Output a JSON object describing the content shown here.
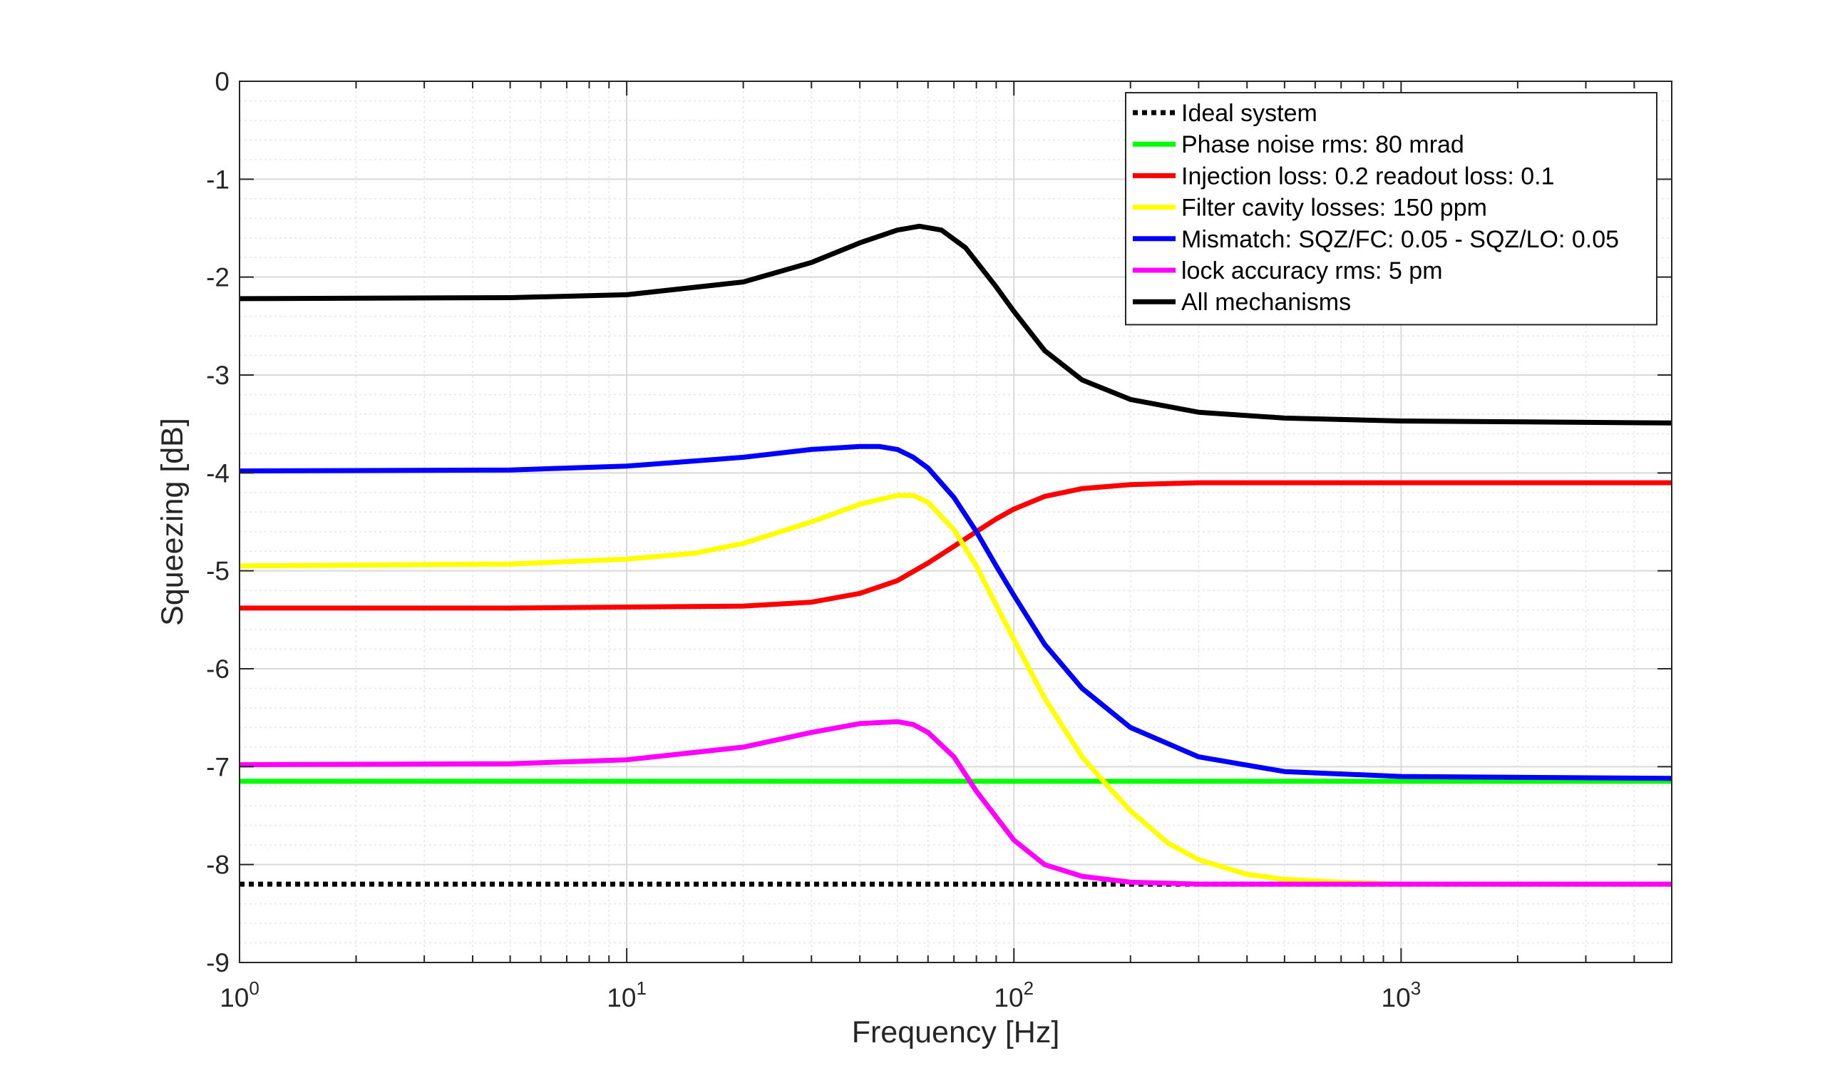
{
  "chart_data": {
    "type": "line",
    "xlabel": "Frequency [Hz]",
    "ylabel": "Squeezing [dB]",
    "xscale": "log",
    "xlim": [
      1,
      5000
    ],
    "ylim": [
      -9,
      0
    ],
    "grid": true,
    "minor_grid": true,
    "legend_position": "top-right",
    "x_ticks": [
      {
        "value": 1,
        "base": "10",
        "exp": "0"
      },
      {
        "value": 10,
        "base": "10",
        "exp": "1"
      },
      {
        "value": 100,
        "base": "10",
        "exp": "2"
      },
      {
        "value": 1000,
        "base": "10",
        "exp": "3"
      }
    ],
    "y_ticks": [
      {
        "value": 0,
        "label": "0"
      },
      {
        "value": -1,
        "label": "-1"
      },
      {
        "value": -2,
        "label": "-2"
      },
      {
        "value": -3,
        "label": "-3"
      },
      {
        "value": -4,
        "label": "-4"
      },
      {
        "value": -5,
        "label": "-5"
      },
      {
        "value": -6,
        "label": "-6"
      },
      {
        "value": -7,
        "label": "-7"
      },
      {
        "value": -8,
        "label": "-8"
      },
      {
        "value": -9,
        "label": "-9"
      }
    ],
    "series": [
      {
        "name": "Ideal system",
        "color": "#000000",
        "dash": "dotted",
        "x": [
          1,
          5000
        ],
        "y": [
          -8.2,
          -8.2
        ]
      },
      {
        "name": "Phase noise rms: 80 mrad",
        "color": "#00ff00",
        "dash": "solid",
        "x": [
          1,
          5000
        ],
        "y": [
          -7.15,
          -7.15
        ]
      },
      {
        "name": "Injection loss: 0.2 readout loss: 0.1",
        "color": "#ff0000",
        "dash": "solid",
        "x": [
          1,
          5,
          20,
          30,
          40,
          50,
          60,
          70,
          80,
          90,
          100,
          120,
          150,
          200,
          300,
          500,
          1000,
          5000
        ],
        "y": [
          -5.38,
          -5.38,
          -5.36,
          -5.32,
          -5.23,
          -5.1,
          -4.92,
          -4.75,
          -4.6,
          -4.47,
          -4.37,
          -4.24,
          -4.16,
          -4.12,
          -4.1,
          -4.1,
          -4.1,
          -4.1
        ]
      },
      {
        "name": "Filter cavity losses: 150 ppm",
        "color": "#ffff00",
        "dash": "solid",
        "x": [
          1,
          5,
          10,
          15,
          20,
          30,
          40,
          50,
          55,
          60,
          70,
          80,
          90,
          100,
          120,
          150,
          175,
          200,
          250,
          300,
          400,
          500,
          700,
          1000,
          5000
        ],
        "y": [
          -4.95,
          -4.93,
          -4.88,
          -4.82,
          -4.72,
          -4.5,
          -4.32,
          -4.23,
          -4.23,
          -4.3,
          -4.58,
          -4.95,
          -5.35,
          -5.7,
          -6.3,
          -6.9,
          -7.2,
          -7.45,
          -7.78,
          -7.95,
          -8.1,
          -8.15,
          -8.18,
          -8.2,
          -8.2
        ]
      },
      {
        "name": "Mismatch: SQZ/FC: 0.05 - SQZ/LO: 0.05",
        "color": "#0000ff",
        "dash": "solid",
        "x": [
          1,
          5,
          10,
          20,
          30,
          40,
          45,
          50,
          55,
          60,
          70,
          80,
          90,
          100,
          120,
          150,
          200,
          300,
          500,
          1000,
          5000
        ],
        "y": [
          -3.98,
          -3.97,
          -3.93,
          -3.84,
          -3.76,
          -3.73,
          -3.73,
          -3.76,
          -3.84,
          -3.95,
          -4.25,
          -4.6,
          -4.95,
          -5.25,
          -5.75,
          -6.2,
          -6.6,
          -6.9,
          -7.05,
          -7.1,
          -7.12
        ]
      },
      {
        "name": "lock accuracy rms: 5 pm",
        "color": "#ff00ff",
        "dash": "solid",
        "x": [
          1,
          5,
          10,
          20,
          30,
          40,
          50,
          55,
          60,
          70,
          80,
          100,
          120,
          150,
          200,
          300,
          5000
        ],
        "y": [
          -6.98,
          -6.97,
          -6.93,
          -6.8,
          -6.65,
          -6.56,
          -6.54,
          -6.57,
          -6.65,
          -6.9,
          -7.25,
          -7.75,
          -8.0,
          -8.12,
          -8.18,
          -8.2,
          -8.2
        ]
      },
      {
        "name": "All mechanisms",
        "color": "#000000",
        "dash": "solid",
        "x": [
          1,
          5,
          10,
          20,
          30,
          40,
          50,
          57,
          65,
          75,
          90,
          100,
          120,
          150,
          200,
          300,
          500,
          1000,
          5000
        ],
        "y": [
          -2.22,
          -2.21,
          -2.18,
          -2.05,
          -1.85,
          -1.65,
          -1.52,
          -1.48,
          -1.52,
          -1.7,
          -2.1,
          -2.35,
          -2.75,
          -3.05,
          -3.25,
          -3.38,
          -3.44,
          -3.47,
          -3.49
        ]
      }
    ]
  }
}
